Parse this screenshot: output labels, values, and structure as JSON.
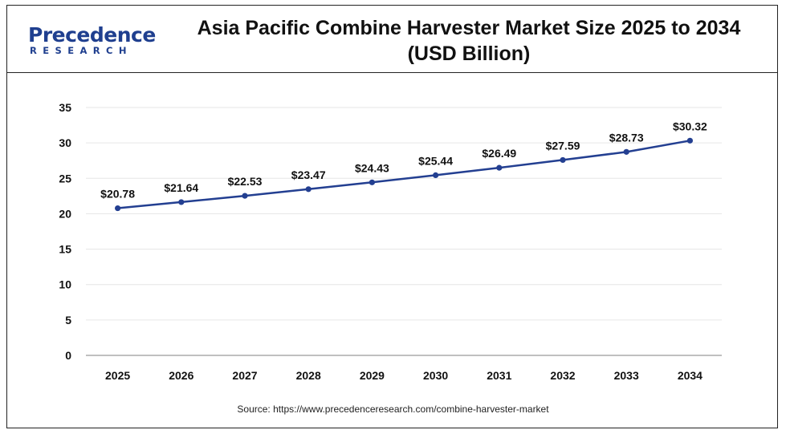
{
  "logo": {
    "top": "Precedence",
    "bottom": "RESEARCH"
  },
  "chart_data": {
    "type": "line",
    "title": "Asia Pacific Combine Harvester Market Size 2025 to 2034 (USD Billion)",
    "title_lines": [
      "Asia Pacific Combine Harvester Market Size 2025 to 2034",
      "(USD Billion)"
    ],
    "xlabel": "",
    "ylabel": "",
    "categories": [
      "2025",
      "2026",
      "2027",
      "2028",
      "2029",
      "2030",
      "2031",
      "2032",
      "2033",
      "2034"
    ],
    "series": [
      {
        "values": [
          20.78,
          21.64,
          22.53,
          23.47,
          24.43,
          25.44,
          26.49,
          27.59,
          28.73,
          30.32
        ],
        "labels": [
          "$20.78",
          "$21.64",
          "$22.53",
          "$23.47",
          "$24.43",
          "$25.44",
          "$26.49",
          "$27.59",
          "$28.73",
          "$30.32"
        ],
        "color": "#233f91"
      }
    ],
    "ylim": [
      0,
      35
    ],
    "yticks": [
      "0",
      "5",
      "10",
      "15",
      "20",
      "25",
      "30",
      "35"
    ],
    "grid": true,
    "legend": "none"
  },
  "source": "Source: https://www.precedenceresearch.com/combine-harvester-market"
}
